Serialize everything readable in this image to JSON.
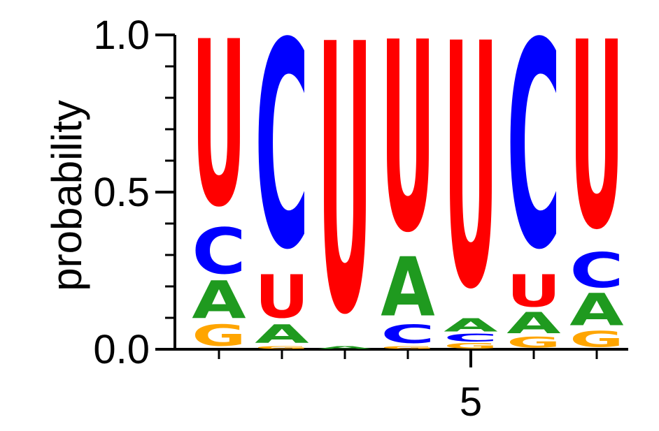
{
  "chart_data": {
    "type": "logo",
    "y_label": "probability",
    "x": [
      1,
      2,
      3,
      4,
      5,
      6,
      7
    ],
    "xlim": [
      0.5,
      7.5
    ],
    "xticks": [
      5
    ],
    "ylim": [
      0,
      1
    ],
    "yticks": [
      {
        "value": 0,
        "label": "0.0"
      },
      {
        "value": 0.5,
        "label": "0.5"
      },
      {
        "value": 1,
        "label": "1.0"
      }
    ],
    "series": [
      {
        "name": "A",
        "color": "#1f9a1f",
        "values": [
          0.14,
          0.07,
          0.01,
          0.22,
          0.05,
          0.08,
          0.12
        ]
      },
      {
        "name": "C",
        "color": "#0000ff",
        "values": [
          0.17,
          0.76,
          0,
          0.07,
          0.03,
          0.76,
          0.13
        ]
      },
      {
        "name": "G",
        "color": "#ffa500",
        "values": [
          0.08,
          0.01,
          0,
          0.01,
          0.02,
          0.04,
          0.06
        ]
      },
      {
        "name": "U",
        "color": "#ff0000",
        "values": [
          0.61,
          0.16,
          0.99,
          0.7,
          0.9,
          0.12,
          0.69
        ]
      }
    ]
  }
}
